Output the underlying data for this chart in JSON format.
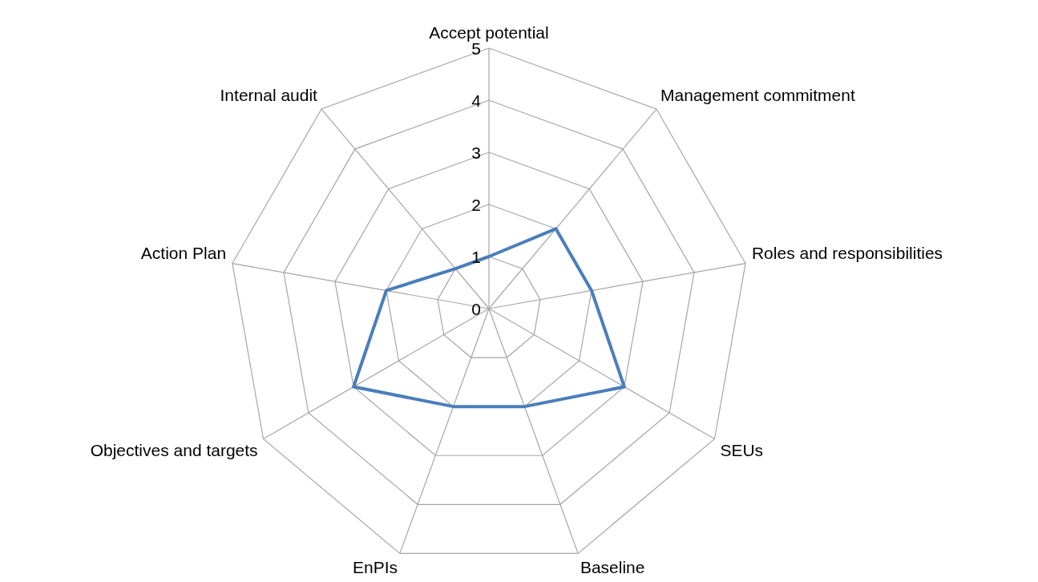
{
  "chart_data": {
    "type": "radar",
    "categories": [
      "Accept potential",
      "Management commitment",
      "Roles and  responsibilities",
      "SEUs",
      "Baseline",
      "EnPIs",
      "Objectives and targets",
      "Action Plan",
      "Internal audit"
    ],
    "series": [
      {
        "color": "#4a7ebb",
        "values": [
          1,
          2,
          2,
          3,
          2,
          2,
          3,
          2,
          1
        ]
      }
    ],
    "ylim": [
      0,
      5
    ],
    "yticks": [
      0,
      1,
      2,
      3,
      4,
      5
    ],
    "grid": true
  }
}
